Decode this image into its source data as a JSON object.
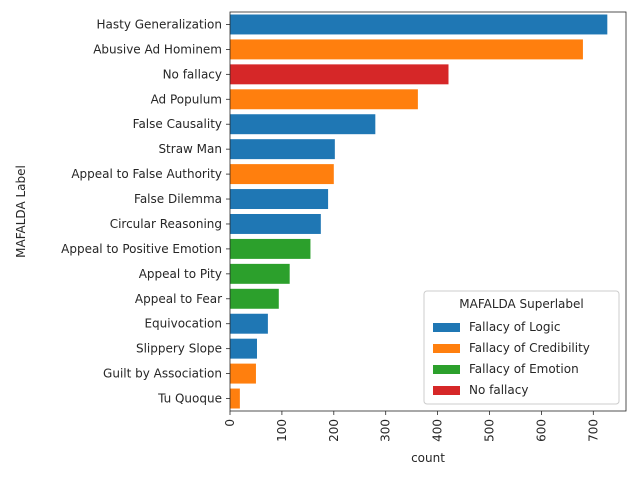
{
  "chart_data": {
    "type": "bar",
    "orientation": "horizontal",
    "xlabel": "count",
    "ylabel": "MAFALDA Label",
    "xlim": [
      0,
      763
    ],
    "xticks": [
      0,
      100,
      200,
      300,
      400,
      500,
      600,
      700
    ],
    "grid": false,
    "legend": {
      "title": "MAFALDA Superlabel",
      "placement": "lower-right",
      "entries": [
        {
          "name": "Fallacy of Logic",
          "color": "#1f77b4"
        },
        {
          "name": "Fallacy of Credibility",
          "color": "#ff7f0e"
        },
        {
          "name": "Fallacy of Emotion",
          "color": "#2ca02c"
        },
        {
          "name": "No fallacy",
          "color": "#d62728"
        }
      ]
    },
    "bars": [
      {
        "category": "Hasty Generalization",
        "value": 727,
        "group": "Fallacy of Logic"
      },
      {
        "category": "Abusive Ad Hominem",
        "value": 680,
        "group": "Fallacy of Credibility"
      },
      {
        "category": "No fallacy",
        "value": 421,
        "group": "No fallacy"
      },
      {
        "category": "Ad Populum",
        "value": 362,
        "group": "Fallacy of Credibility"
      },
      {
        "category": "False Causality",
        "value": 280,
        "group": "Fallacy of Logic"
      },
      {
        "category": "Straw Man",
        "value": 202,
        "group": "Fallacy of Logic"
      },
      {
        "category": "Appeal to False Authority",
        "value": 200,
        "group": "Fallacy of Credibility"
      },
      {
        "category": "False Dilemma",
        "value": 189,
        "group": "Fallacy of Logic"
      },
      {
        "category": "Circular Reasoning",
        "value": 175,
        "group": "Fallacy of Logic"
      },
      {
        "category": "Appeal to Positive Emotion",
        "value": 155,
        "group": "Fallacy of Emotion"
      },
      {
        "category": "Appeal to Pity",
        "value": 115,
        "group": "Fallacy of Emotion"
      },
      {
        "category": "Appeal to Fear",
        "value": 94,
        "group": "Fallacy of Emotion"
      },
      {
        "category": "Equivocation",
        "value": 73,
        "group": "Fallacy of Logic"
      },
      {
        "category": "Slippery Slope",
        "value": 52,
        "group": "Fallacy of Logic"
      },
      {
        "category": "Guilt by Association",
        "value": 50,
        "group": "Fallacy of Credibility"
      },
      {
        "category": "Tu Quoque",
        "value": 19,
        "group": "Fallacy of Credibility"
      }
    ]
  }
}
